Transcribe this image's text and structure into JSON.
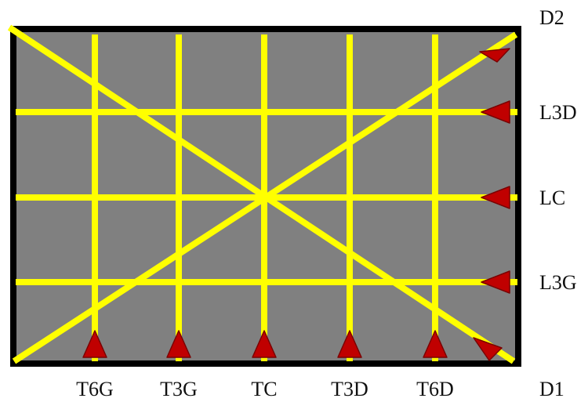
{
  "colors": {
    "plate": "#808080",
    "border": "#000000",
    "scan_line": "#ffff00",
    "arrow_fill": "#c00000",
    "arrow_stroke": "#7a0000",
    "text": "#111111"
  },
  "labels": {
    "D2": "D2",
    "L3D": "L3D",
    "LC": "LC",
    "L3G": "L3G",
    "D1": "D1",
    "T6G": "T6G",
    "T3G": "T3G",
    "TC": "TC",
    "T3D": "T3D",
    "T6D": "T6D"
  },
  "arrow_direction": {
    "transverse": "up",
    "longitudinal": "left",
    "D2": "up-right",
    "D1": "down-right"
  }
}
